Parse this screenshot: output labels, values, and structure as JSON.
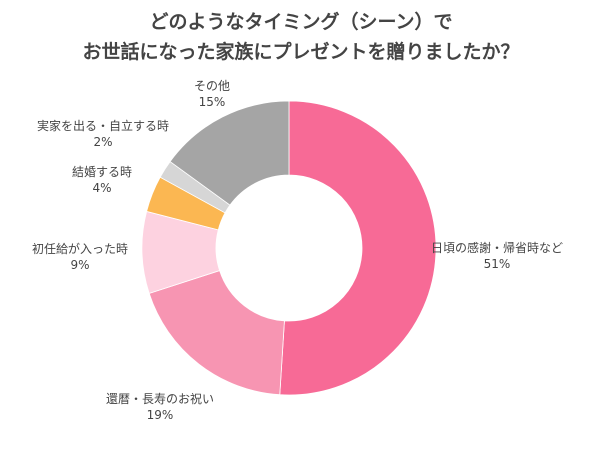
{
  "chart_data": {
    "type": "pie",
    "donut": true,
    "title_lines": [
      "どのようなタイミング（シーン）で",
      "お世話になった家族にプレゼントを贈りましたか？"
    ],
    "slices": [
      {
        "label": "日頃の感謝・帰省時など",
        "value": 51,
        "display": "51%",
        "color": "#f76a96"
      },
      {
        "label": "還暦・長寿のお祝い",
        "value": 19,
        "display": "19%",
        "color": "#f795b2"
      },
      {
        "label": "初任給が入った時",
        "value": 9,
        "display": "9%",
        "color": "#fdd2e0"
      },
      {
        "label": "結婚する時",
        "value": 4,
        "display": "4%",
        "color": "#fbb752"
      },
      {
        "label": "実家を出る・自立する時",
        "value": 2,
        "display": "2%",
        "color": "#d6d6d6"
      },
      {
        "label": "その他",
        "value": 15,
        "display": "15%",
        "color": "#a5a5a5"
      }
    ],
    "start": "12 o'clock",
    "direction": "clockwise",
    "legend": "none"
  }
}
